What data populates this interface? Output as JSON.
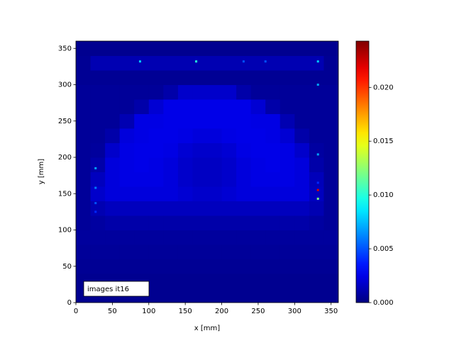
{
  "chart_data": {
    "type": "heatmap",
    "xlabel": "x [mm]",
    "ylabel": "y [mm]",
    "annotation": "images it16",
    "colormap": "jet",
    "xlim": [
      0,
      360
    ],
    "ylim": [
      0,
      360
    ],
    "xticks": [
      0,
      50,
      100,
      150,
      200,
      250,
      300,
      350
    ],
    "yticks": [
      0,
      50,
      100,
      150,
      200,
      250,
      300,
      350
    ],
    "xbins": [
      0,
      20,
      40,
      60,
      80,
      100,
      120,
      140,
      160,
      180,
      200,
      220,
      240,
      260,
      280,
      300,
      320,
      340,
      360
    ],
    "ybins": [
      0,
      20,
      40,
      60,
      80,
      100,
      120,
      140,
      160,
      180,
      200,
      220,
      240,
      260,
      280,
      300,
      320,
      340,
      360
    ],
    "clim": [
      0,
      0.0243
    ],
    "cticks": [
      {
        "value": 0,
        "label": "0.000"
      },
      {
        "value": 0.005,
        "label": "0.005"
      },
      {
        "value": 0.01,
        "label": "0.010"
      },
      {
        "value": 0.015,
        "label": "0.015"
      },
      {
        "value": 0.02,
        "label": "0.020"
      }
    ],
    "values": [
      [
        0.0004,
        0.0004,
        0.0004,
        0.0004,
        0.0004,
        0.0004,
        0.0004,
        0.0004,
        0.0004,
        0.0004,
        0.0004,
        0.0004,
        0.0004,
        0.0004,
        0.0004,
        0.0004,
        0.0004,
        0.0004
      ],
      [
        0.0004,
        0.0004,
        0.0004,
        0.0004,
        0.0004,
        0.0004,
        0.0004,
        0.0004,
        0.0004,
        0.0004,
        0.0004,
        0.0004,
        0.0004,
        0.0004,
        0.0004,
        0.0004,
        0.0004,
        0.0004
      ],
      [
        0.0005,
        0.0005,
        0.0005,
        0.0005,
        0.0005,
        0.0005,
        0.0005,
        0.0005,
        0.0005,
        0.0005,
        0.0005,
        0.0005,
        0.0005,
        0.0005,
        0.0005,
        0.0005,
        0.0005,
        0.0005
      ],
      [
        0.0006,
        0.0006,
        0.0006,
        0.0006,
        0.0006,
        0.0006,
        0.0006,
        0.0006,
        0.0006,
        0.0006,
        0.0006,
        0.0006,
        0.0006,
        0.0006,
        0.0006,
        0.0006,
        0.0006,
        0.0006
      ],
      [
        0.0007,
        0.0007,
        0.0007,
        0.0007,
        0.0007,
        0.0007,
        0.0007,
        0.0007,
        0.0007,
        0.0007,
        0.0007,
        0.0007,
        0.0007,
        0.0007,
        0.0007,
        0.0007,
        0.0007,
        0.0007
      ],
      [
        0.0006,
        0.0008,
        0.001,
        0.001,
        0.001,
        0.001,
        0.001,
        0.001,
        0.001,
        0.001,
        0.001,
        0.001,
        0.001,
        0.001,
        0.001,
        0.001,
        0.0008,
        0.0006
      ],
      [
        0.0006,
        0.0012,
        0.0015,
        0.0015,
        0.0015,
        0.0015,
        0.0015,
        0.0015,
        0.0015,
        0.0015,
        0.0015,
        0.0015,
        0.0015,
        0.0015,
        0.0015,
        0.0015,
        0.0012,
        0.0006
      ],
      [
        0.0006,
        0.0018,
        0.0022,
        0.0022,
        0.0022,
        0.0022,
        0.0022,
        0.002,
        0.0018,
        0.0018,
        0.002,
        0.0022,
        0.0022,
        0.0022,
        0.0022,
        0.0022,
        0.0015,
        0.0006
      ],
      [
        0.0006,
        0.0015,
        0.0022,
        0.0024,
        0.0024,
        0.0024,
        0.0022,
        0.0018,
        0.0016,
        0.0016,
        0.0018,
        0.0022,
        0.0024,
        0.0024,
        0.0024,
        0.0022,
        0.0014,
        0.0006
      ],
      [
        0.0006,
        0.001,
        0.0022,
        0.0024,
        0.0025,
        0.0024,
        0.0022,
        0.0018,
        0.0016,
        0.0016,
        0.0018,
        0.0022,
        0.0024,
        0.0025,
        0.0024,
        0.0022,
        0.001,
        0.0006
      ],
      [
        0.0006,
        0.0007,
        0.0018,
        0.0024,
        0.0025,
        0.0025,
        0.0024,
        0.002,
        0.0018,
        0.0018,
        0.002,
        0.0024,
        0.0025,
        0.0025,
        0.0024,
        0.0018,
        0.0008,
        0.0006
      ],
      [
        0.0006,
        0.0006,
        0.001,
        0.0022,
        0.0024,
        0.0025,
        0.0025,
        0.0024,
        0.0022,
        0.0022,
        0.0024,
        0.0025,
        0.0025,
        0.0024,
        0.002,
        0.001,
        0.0006,
        0.0006
      ],
      [
        0.0006,
        0.0006,
        0.0006,
        0.0012,
        0.0024,
        0.0024,
        0.0025,
        0.0025,
        0.0025,
        0.0025,
        0.0025,
        0.0025,
        0.0024,
        0.0024,
        0.0012,
        0.0006,
        0.0006,
        0.0006
      ],
      [
        0.0006,
        0.0006,
        0.0006,
        0.0006,
        0.001,
        0.002,
        0.0025,
        0.0025,
        0.0025,
        0.0025,
        0.0025,
        0.0025,
        0.002,
        0.001,
        0.0006,
        0.0006,
        0.0006,
        0.0006
      ],
      [
        0.0006,
        0.0006,
        0.0006,
        0.0006,
        0.0006,
        0.0006,
        0.001,
        0.0018,
        0.0018,
        0.0018,
        0.0018,
        0.001,
        0.0006,
        0.0006,
        0.0006,
        0.0006,
        0.0006,
        0.0006
      ],
      [
        0.0005,
        0.0005,
        0.0005,
        0.0005,
        0.0005,
        0.0005,
        0.0005,
        0.0005,
        0.0005,
        0.0005,
        0.0005,
        0.0005,
        0.0005,
        0.0005,
        0.0005,
        0.0005,
        0.0005,
        0.0005
      ],
      [
        0.0005,
        0.0012,
        0.0012,
        0.0012,
        0.0012,
        0.0012,
        0.0012,
        0.0012,
        0.0012,
        0.0012,
        0.0012,
        0.0012,
        0.0012,
        0.0012,
        0.0012,
        0.0012,
        0.0012,
        0.0005
      ],
      [
        0.0004,
        0.0004,
        0.0004,
        0.0004,
        0.0004,
        0.0004,
        0.0004,
        0.0004,
        0.0004,
        0.0004,
        0.0004,
        0.0004,
        0.0004,
        0.0004,
        0.0004,
        0.0004,
        0.0004,
        0.0004
      ]
    ],
    "spots": {
      "x": [
        332,
        332,
        332,
        332,
        332,
        332,
        27,
        27,
        27,
        27,
        88,
        165,
        230,
        260
      ],
      "y": [
        332,
        300,
        204,
        165,
        155,
        143,
        185,
        158,
        137,
        125,
        332,
        332,
        332,
        332
      ],
      "values": [
        0.008,
        0.007,
        0.007,
        0.004,
        0.022,
        0.012,
        0.007,
        0.006,
        0.005,
        0.004,
        0.008,
        0.01,
        0.005,
        0.005
      ]
    }
  }
}
